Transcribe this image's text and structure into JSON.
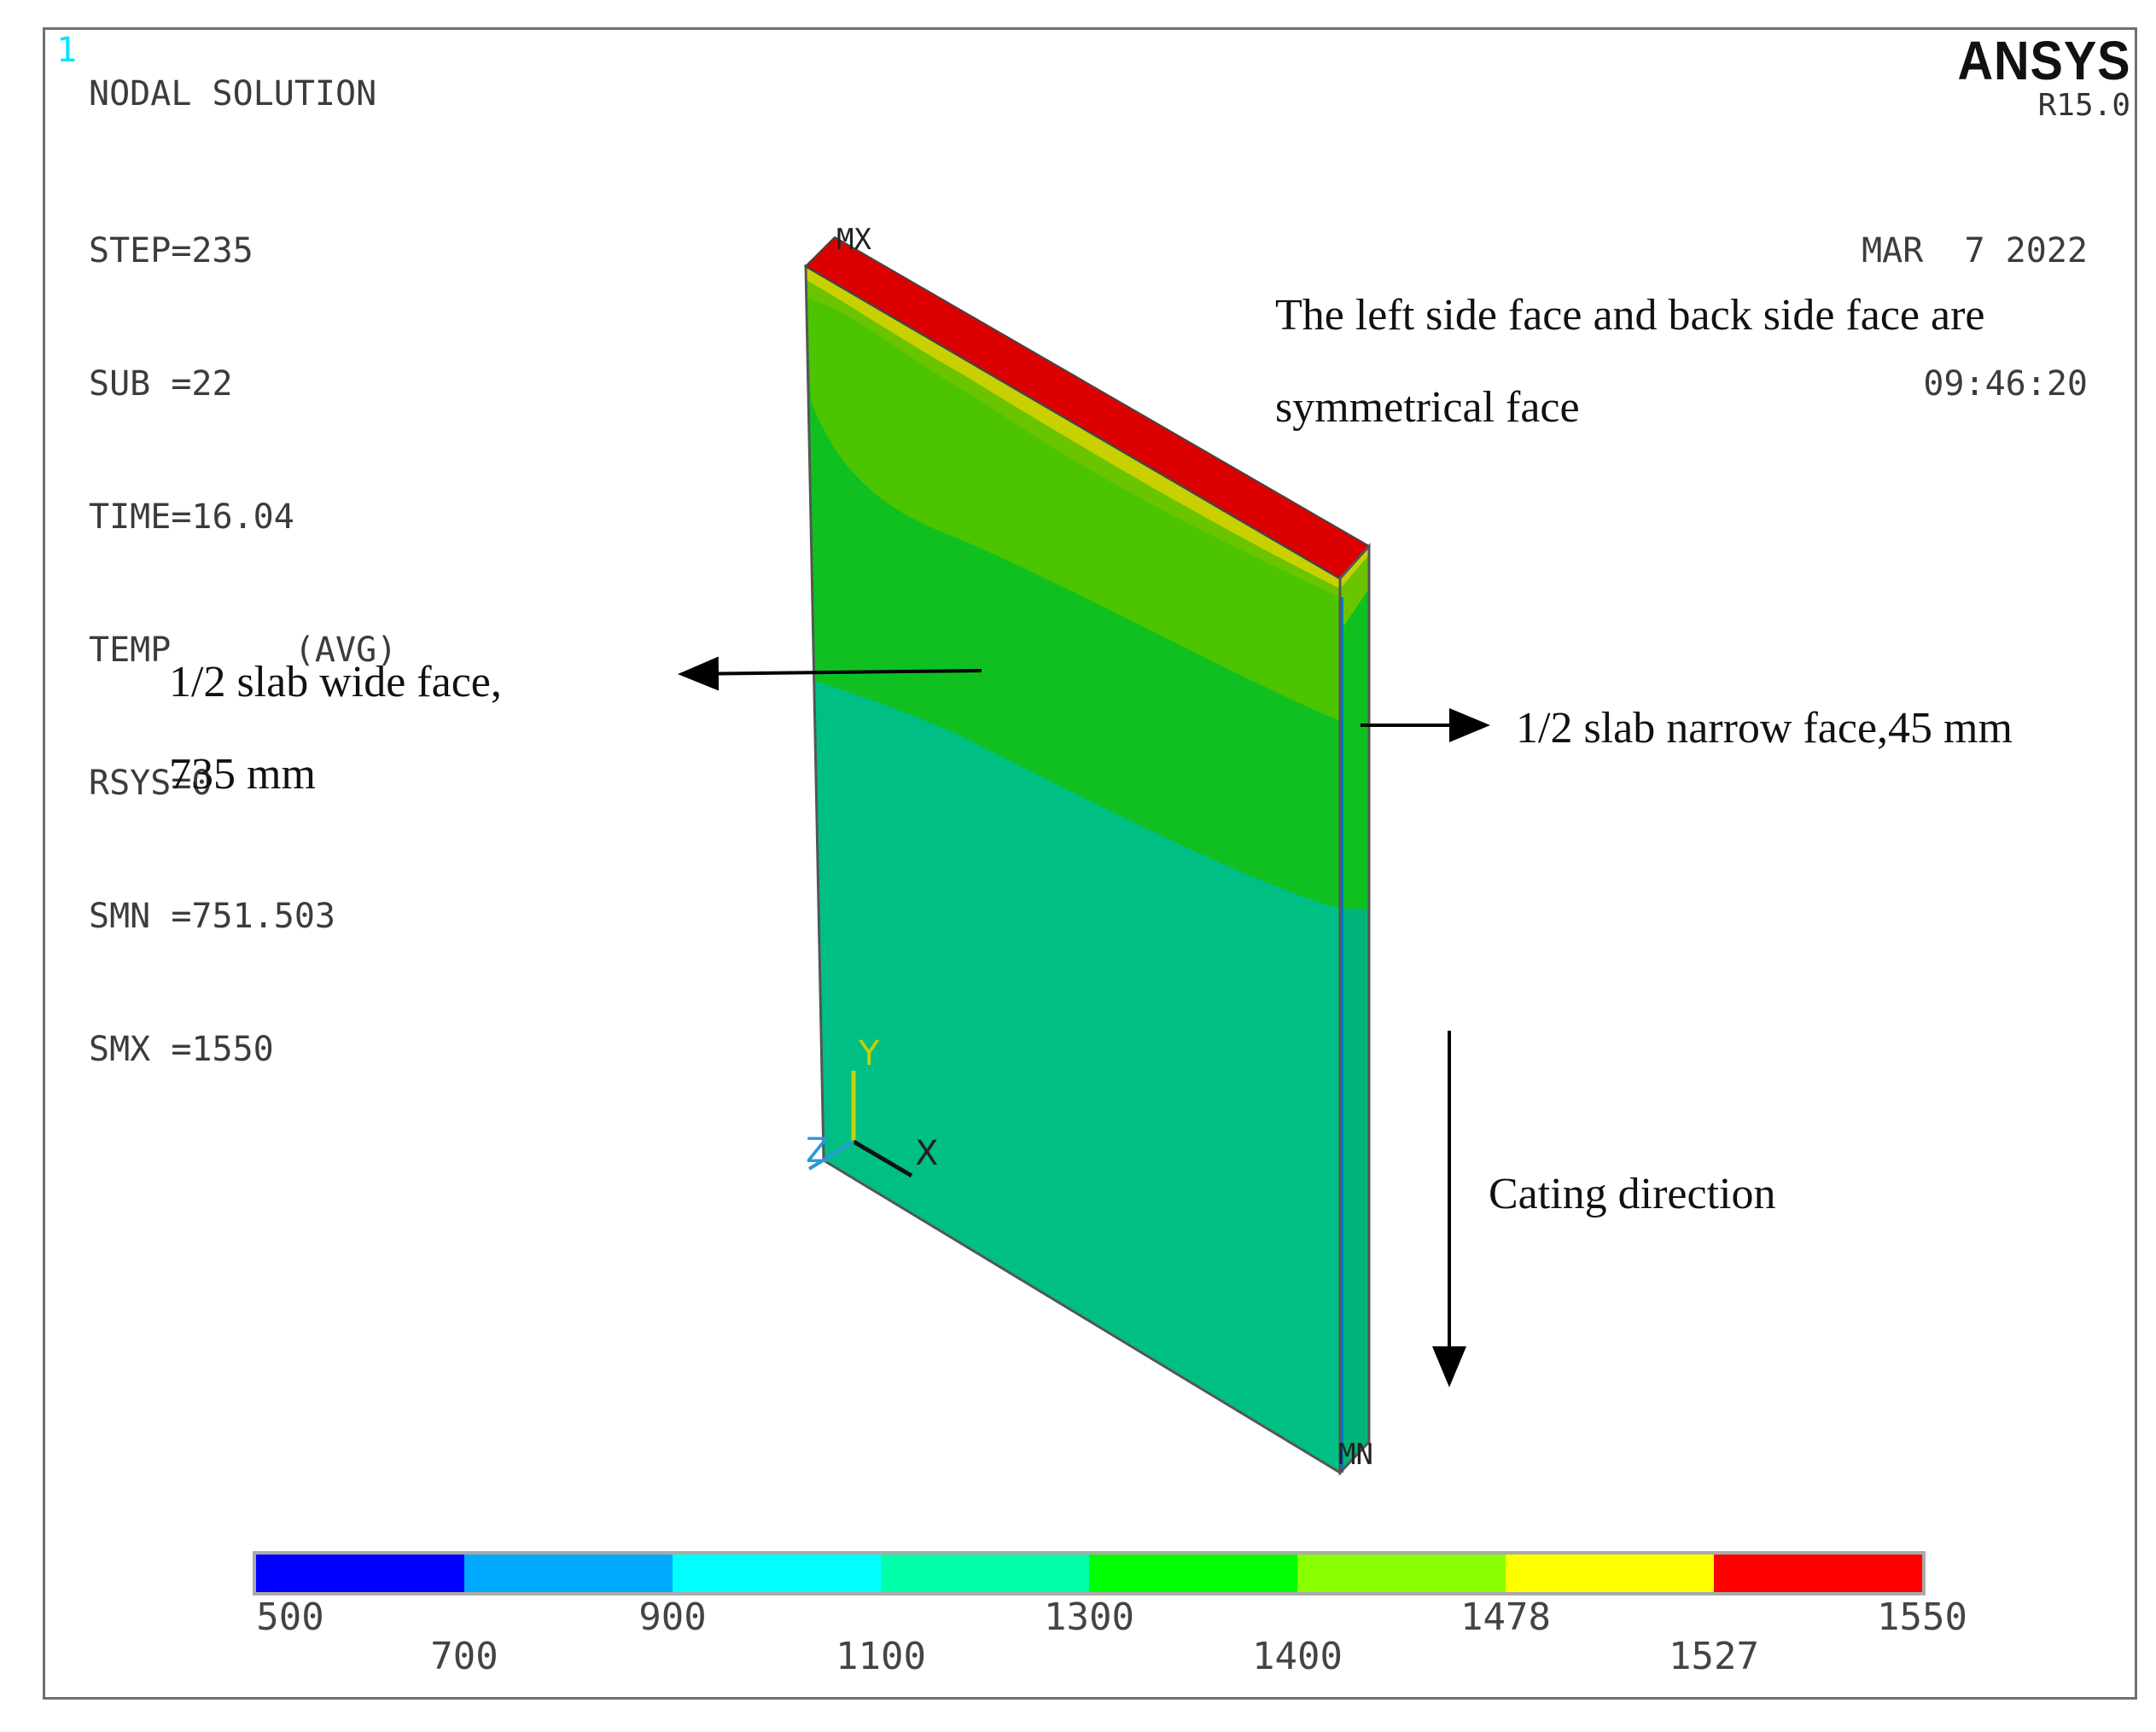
{
  "header": {
    "window_number": "1",
    "result_title": "NODAL SOLUTION",
    "info_lines": [
      "STEP=235",
      "SUB =22",
      "TIME=16.04",
      "TEMP      (AVG)",
      "RSYS=0",
      "SMN =751.503",
      "SMX =1550"
    ],
    "product": "ANSYS",
    "version": "R15.0",
    "date": "MAR  7 2022",
    "time": "09:46:20"
  },
  "annotations": {
    "symmetry_line1": "The left side face and back side face are",
    "symmetry_line2": "symmetrical face",
    "wide_face_line1": "1/2 slab wide face,",
    "wide_face_line2": "735 mm",
    "narrow_face": "1/2 slab narrow face,45 mm",
    "casting_direction": "Cating direction"
  },
  "model": {
    "max_label": "MX",
    "min_label": "MN",
    "axis_labels": {
      "x": "X",
      "y": "Y",
      "z": "Z"
    }
  },
  "legend": {
    "colors": [
      "#0000ff",
      "#00aaff",
      "#00ffff",
      "#00ffaa",
      "#00ff00",
      "#88ff00",
      "#ffff00",
      "#ff0000"
    ],
    "top_ticks": [
      "500",
      "900",
      "1300",
      "1478",
      "1550"
    ],
    "bottom_ticks": [
      "700",
      "1100",
      "1400",
      "1527"
    ]
  },
  "colors": {
    "face_green_light": "#00bf85",
    "face_green": "#1fbf1f",
    "face_yellow_green": "#6ac400",
    "face_yellow": "#d4d400",
    "face_red": "#dd0000"
  }
}
